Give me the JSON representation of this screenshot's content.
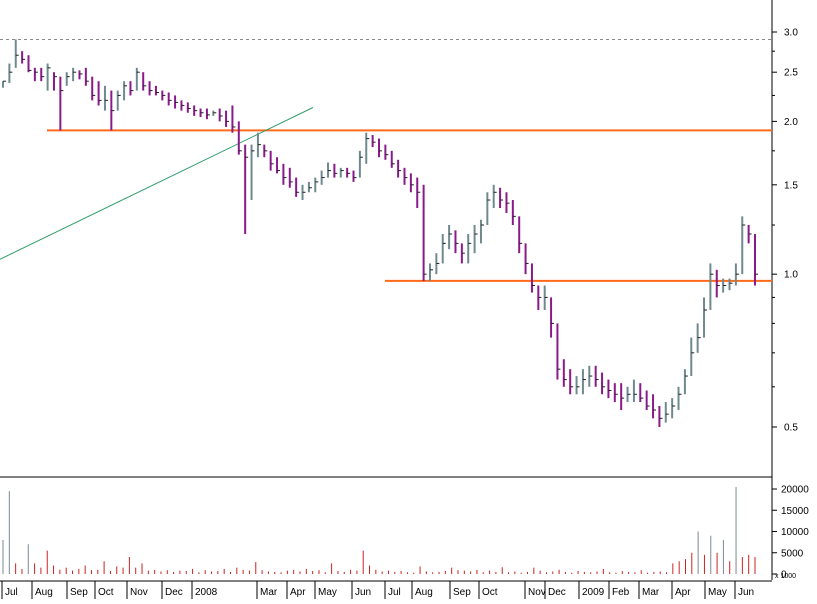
{
  "chart_data": {
    "type": "ohlc",
    "price_scale": "log",
    "price_ticks": [
      "3.0",
      "2.5",
      "2.0",
      "1.5",
      "1.0",
      "0.5"
    ],
    "volume_ticks": [
      "20000",
      "15000",
      "10000",
      "5000",
      "0"
    ],
    "volume_unit": "x 1000",
    "x_labels": [
      "Jul",
      "Aug",
      "Sep",
      "Oct",
      "Nov",
      "Dec",
      "2008",
      "Mar",
      "Apr",
      "May",
      "Jun",
      "Jul",
      "Aug",
      "Sep",
      "Oct",
      "Nov",
      "Dec",
      "2009",
      "Feb",
      "Mar",
      "Apr",
      "May",
      "Jun"
    ],
    "horizontal_lines": [
      {
        "price": 1.92,
        "color": "#ff6a1a",
        "style": "solid"
      },
      {
        "price": 0.97,
        "color": "#ff6a1a",
        "style": "solid"
      },
      {
        "price": 2.9,
        "color": "#888888",
        "style": "dashed"
      }
    ],
    "trendline": {
      "color": "#2e9e6a",
      "from": {
        "date": "2007-06-25",
        "price": 1.07
      },
      "to": {
        "date": "2008-05-02",
        "price": 2.13
      }
    },
    "colors": {
      "up": "#6f8a8f",
      "down": "#8a1a8a",
      "volume": "#cc2222"
    },
    "bars": [
      [
        2.4,
        2.33,
        2.4
      ],
      [
        2.6,
        2.38,
        2.5
      ],
      [
        2.9,
        2.55,
        2.7
      ],
      [
        2.75,
        2.6,
        2.65
      ],
      [
        2.7,
        2.5,
        2.52
      ],
      [
        2.55,
        2.4,
        2.5
      ],
      [
        2.55,
        2.4,
        2.45
      ],
      [
        2.6,
        2.3,
        2.55
      ],
      [
        2.5,
        2.3,
        2.45
      ],
      [
        2.45,
        1.92,
        2.3
      ],
      [
        2.5,
        2.35,
        2.45
      ],
      [
        2.55,
        2.4,
        2.5
      ],
      [
        2.52,
        2.42,
        2.48
      ],
      [
        2.55,
        2.35,
        2.4
      ],
      [
        2.45,
        2.2,
        2.25
      ],
      [
        2.4,
        2.15,
        2.2
      ],
      [
        2.35,
        2.1,
        2.2
      ],
      [
        2.3,
        1.92,
        2.1
      ],
      [
        2.3,
        2.1,
        2.25
      ],
      [
        2.4,
        2.2,
        2.35
      ],
      [
        2.4,
        2.25,
        2.3
      ],
      [
        2.55,
        2.3,
        2.5
      ],
      [
        2.5,
        2.3,
        2.35
      ],
      [
        2.4,
        2.25,
        2.3
      ],
      [
        2.35,
        2.25,
        2.28
      ],
      [
        2.3,
        2.2,
        2.25
      ],
      [
        2.28,
        2.15,
        2.2
      ],
      [
        2.25,
        2.12,
        2.18
      ],
      [
        2.2,
        2.1,
        2.15
      ],
      [
        2.18,
        2.08,
        2.12
      ],
      [
        2.15,
        2.05,
        2.1
      ],
      [
        2.12,
        2.04,
        2.08
      ],
      [
        2.12,
        2.02,
        2.06
      ],
      [
        2.1,
        2.05,
        2.08
      ],
      [
        2.12,
        2.0,
        2.05
      ],
      [
        2.1,
        1.95,
        2.0
      ],
      [
        2.15,
        1.9,
        1.95
      ],
      [
        2.0,
        1.72,
        1.75
      ],
      [
        1.8,
        1.2,
        1.7
      ],
      [
        1.8,
        1.4,
        1.75
      ],
      [
        1.9,
        1.7,
        1.8
      ],
      [
        1.8,
        1.7,
        1.75
      ],
      [
        1.75,
        1.6,
        1.65
      ],
      [
        1.7,
        1.58,
        1.6
      ],
      [
        1.65,
        1.5,
        1.55
      ],
      [
        1.62,
        1.48,
        1.52
      ],
      [
        1.55,
        1.42,
        1.45
      ],
      [
        1.5,
        1.4,
        1.45
      ],
      [
        1.52,
        1.45,
        1.48
      ],
      [
        1.55,
        1.45,
        1.52
      ],
      [
        1.6,
        1.5,
        1.55
      ],
      [
        1.66,
        1.55,
        1.6
      ],
      [
        1.65,
        1.55,
        1.58
      ],
      [
        1.62,
        1.55,
        1.6
      ],
      [
        1.62,
        1.55,
        1.58
      ],
      [
        1.6,
        1.52,
        1.55
      ],
      [
        1.75,
        1.55,
        1.7
      ],
      [
        1.9,
        1.65,
        1.85
      ],
      [
        1.88,
        1.78,
        1.82
      ],
      [
        1.85,
        1.7,
        1.75
      ],
      [
        1.8,
        1.68,
        1.72
      ],
      [
        1.75,
        1.62,
        1.65
      ],
      [
        1.68,
        1.55,
        1.6
      ],
      [
        1.62,
        1.5,
        1.55
      ],
      [
        1.58,
        1.45,
        1.5
      ],
      [
        1.55,
        1.35,
        1.45
      ],
      [
        1.5,
        0.97,
        1.0
      ],
      [
        1.05,
        0.97,
        1.02
      ],
      [
        1.1,
        1.0,
        1.05
      ],
      [
        1.2,
        1.05,
        1.15
      ],
      [
        1.25,
        1.12,
        1.2
      ],
      [
        1.22,
        1.1,
        1.15
      ],
      [
        1.15,
        1.05,
        1.1
      ],
      [
        1.2,
        1.05,
        1.15
      ],
      [
        1.25,
        1.1,
        1.2
      ],
      [
        1.28,
        1.15,
        1.25
      ],
      [
        1.45,
        1.25,
        1.4
      ],
      [
        1.5,
        1.35,
        1.45
      ],
      [
        1.48,
        1.35,
        1.4
      ],
      [
        1.45,
        1.32,
        1.38
      ],
      [
        1.4,
        1.25,
        1.3
      ],
      [
        1.3,
        1.1,
        1.15
      ],
      [
        1.15,
        1.0,
        1.05
      ],
      [
        1.05,
        0.92,
        0.95
      ],
      [
        0.95,
        0.85,
        0.9
      ],
      [
        0.95,
        0.85,
        0.9
      ],
      [
        0.9,
        0.75,
        0.8
      ],
      [
        0.8,
        0.62,
        0.65
      ],
      [
        0.68,
        0.6,
        0.62
      ],
      [
        0.65,
        0.58,
        0.6
      ],
      [
        0.63,
        0.58,
        0.6
      ],
      [
        0.65,
        0.58,
        0.62
      ],
      [
        0.66,
        0.6,
        0.63
      ],
      [
        0.66,
        0.6,
        0.62
      ],
      [
        0.64,
        0.58,
        0.6
      ],
      [
        0.62,
        0.57,
        0.59
      ],
      [
        0.61,
        0.56,
        0.58
      ],
      [
        0.61,
        0.54,
        0.57
      ],
      [
        0.6,
        0.56,
        0.58
      ],
      [
        0.62,
        0.56,
        0.58
      ],
      [
        0.61,
        0.56,
        0.57
      ],
      [
        0.59,
        0.54,
        0.55
      ],
      [
        0.58,
        0.52,
        0.54
      ],
      [
        0.55,
        0.5,
        0.52
      ],
      [
        0.56,
        0.51,
        0.53
      ],
      [
        0.57,
        0.52,
        0.55
      ],
      [
        0.6,
        0.54,
        0.58
      ],
      [
        0.65,
        0.58,
        0.63
      ],
      [
        0.75,
        0.63,
        0.7
      ],
      [
        0.8,
        0.7,
        0.75
      ],
      [
        0.9,
        0.75,
        0.85
      ],
      [
        1.05,
        0.85,
        1.0
      ],
      [
        1.02,
        0.9,
        0.95
      ],
      [
        0.98,
        0.92,
        0.95
      ],
      [
        0.98,
        0.93,
        0.96
      ],
      [
        1.05,
        0.95,
        1.0
      ],
      [
        1.3,
        1.0,
        1.25
      ],
      [
        1.25,
        1.15,
        1.2
      ],
      [
        1.2,
        0.95,
        1.0
      ]
    ],
    "volumes": [
      8000,
      19500,
      2500,
      1200,
      7000,
      2500,
      1500,
      5500,
      2000,
      1000,
      1500,
      800,
      1200,
      2000,
      900,
      1000,
      3000,
      700,
      1800,
      1500,
      4000,
      1500,
      2500,
      800,
      1000,
      600,
      900,
      500,
      800,
      700,
      1200,
      400,
      900,
      600,
      700,
      1200,
      500,
      1500,
      1000,
      800,
      2800,
      900,
      600,
      500,
      400,
      800,
      1000,
      600,
      1200,
      700,
      900,
      400,
      2500,
      700,
      500,
      1000,
      800,
      5500,
      2000,
      1000,
      600,
      800,
      500,
      700,
      400,
      300,
      1800,
      600,
      400,
      500,
      700,
      1500,
      900,
      800,
      600,
      1000,
      400,
      800,
      500,
      1600,
      400,
      600,
      300,
      500,
      1500,
      800,
      400,
      600,
      1000,
      500,
      300,
      700,
      500,
      400,
      600,
      1200,
      400,
      300,
      700,
      500,
      400,
      900,
      300,
      500,
      600,
      400,
      2500,
      3000,
      3500,
      5000,
      10000,
      4500,
      9000,
      5000,
      8000,
      3000,
      20500,
      4000,
      4500,
      4000
    ]
  }
}
